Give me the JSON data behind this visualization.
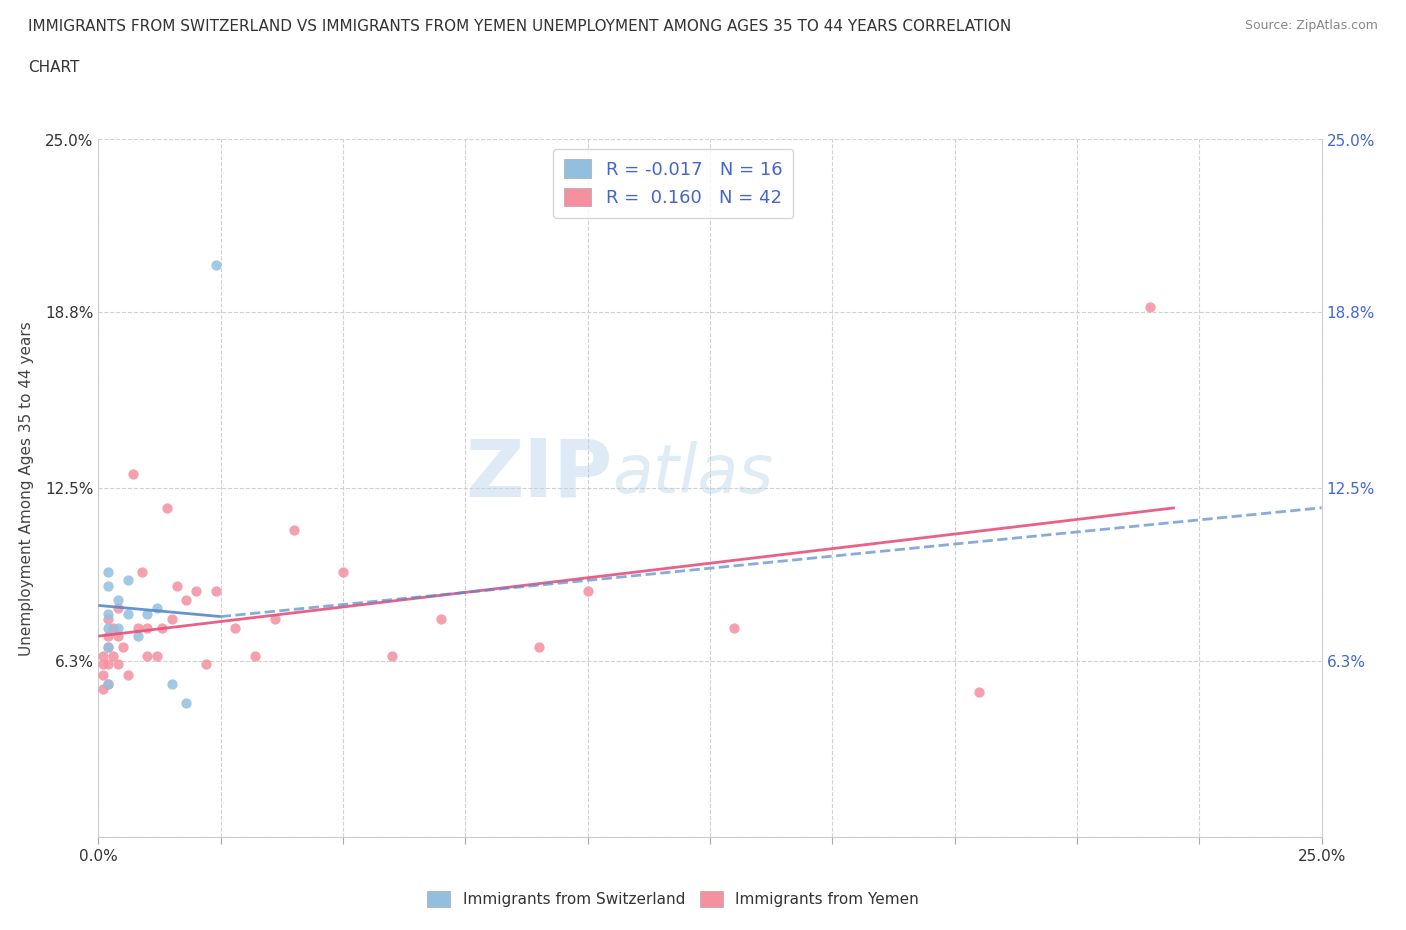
{
  "title_line1": "IMMIGRANTS FROM SWITZERLAND VS IMMIGRANTS FROM YEMEN UNEMPLOYMENT AMONG AGES 35 TO 44 YEARS CORRELATION",
  "title_line2": "CHART",
  "source": "Source: ZipAtlas.com",
  "ylabel": "Unemployment Among Ages 35 to 44 years",
  "xlim": [
    0.0,
    0.25
  ],
  "ylim": [
    0.0,
    0.25
  ],
  "xticks": [
    0.0,
    0.025,
    0.05,
    0.075,
    0.1,
    0.125,
    0.15,
    0.175,
    0.2,
    0.225,
    0.25
  ],
  "ytick_vals": [
    0.0,
    0.063,
    0.125,
    0.188,
    0.25
  ],
  "ytick_labels_left": [
    "",
    "6.3%",
    "12.5%",
    "18.8%",
    "25.0%"
  ],
  "ytick_labels_right": [
    "",
    "6.3%",
    "12.5%",
    "18.8%",
    "25.0%"
  ],
  "xtick_labels": [
    "0.0%",
    "",
    "",
    "",
    "",
    "",
    "",
    "",
    "",
    "",
    "25.0%"
  ],
  "switzerland_marker_color": "#92bfe0",
  "yemen_marker_color": "#f490a0",
  "trendline_switzerland_color": "#5588cc",
  "trendline_yemen_color": "#e8507a",
  "legend_text_color": "#4466cc",
  "R_switzerland": -0.017,
  "N_switzerland": 16,
  "R_yemen": 0.16,
  "N_yemen": 42,
  "switzerland_x": [
    0.002,
    0.002,
    0.002,
    0.002,
    0.002,
    0.002,
    0.004,
    0.004,
    0.006,
    0.006,
    0.008,
    0.01,
    0.012,
    0.015,
    0.018,
    0.024
  ],
  "switzerland_y": [
    0.055,
    0.068,
    0.075,
    0.08,
    0.09,
    0.095,
    0.075,
    0.085,
    0.08,
    0.092,
    0.072,
    0.08,
    0.082,
    0.055,
    0.048,
    0.205
  ],
  "yemen_x": [
    0.001,
    0.001,
    0.001,
    0.001,
    0.002,
    0.002,
    0.002,
    0.002,
    0.002,
    0.003,
    0.003,
    0.004,
    0.004,
    0.004,
    0.005,
    0.006,
    0.007,
    0.008,
    0.009,
    0.01,
    0.01,
    0.012,
    0.013,
    0.014,
    0.015,
    0.016,
    0.018,
    0.02,
    0.022,
    0.024,
    0.028,
    0.032,
    0.036,
    0.04,
    0.05,
    0.06,
    0.07,
    0.09,
    0.1,
    0.13,
    0.18,
    0.215
  ],
  "yemen_y": [
    0.053,
    0.058,
    0.062,
    0.065,
    0.055,
    0.062,
    0.068,
    0.072,
    0.078,
    0.065,
    0.075,
    0.062,
    0.072,
    0.082,
    0.068,
    0.058,
    0.13,
    0.075,
    0.095,
    0.065,
    0.075,
    0.065,
    0.075,
    0.118,
    0.078,
    0.09,
    0.085,
    0.088,
    0.062,
    0.088,
    0.075,
    0.065,
    0.078,
    0.11,
    0.095,
    0.065,
    0.078,
    0.068,
    0.088,
    0.075,
    0.052,
    0.19
  ],
  "sw_trend_x": [
    0.0,
    0.025
  ],
  "sw_trend_y": [
    0.083,
    0.079
  ],
  "ye_trend_x": [
    0.0,
    0.22
  ],
  "ye_trend_y": [
    0.072,
    0.118
  ],
  "watermark_zip": "ZIP",
  "watermark_atlas": "atlas",
  "background_color": "#ffffff",
  "grid_color": "#cccccc",
  "legend1_label1": "R = -0.017   N = 16",
  "legend1_label2": "R =  0.160   N = 42",
  "legend2_label1": "Immigrants from Switzerland",
  "legend2_label2": "Immigrants from Yemen"
}
